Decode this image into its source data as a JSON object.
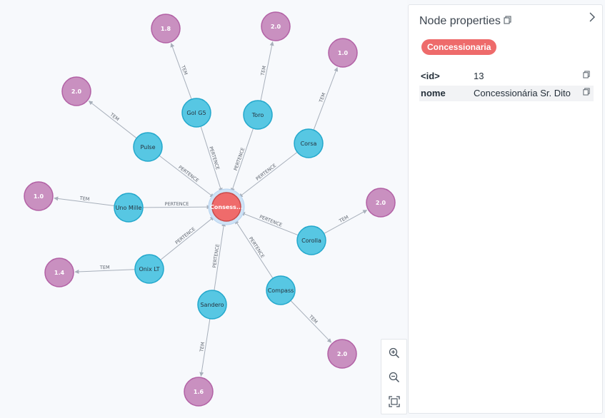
{
  "graph": {
    "center": {
      "id": "center",
      "label": "Consess...",
      "full_name": "Concessionaria",
      "color": "#ef6b6b"
    },
    "cars": [
      {
        "id": "gol",
        "label": "Gol G5",
        "rating": "1.8"
      },
      {
        "id": "toro",
        "label": "Toro",
        "rating": "2.0"
      },
      {
        "id": "corsa",
        "label": "Corsa",
        "rating": "1.0"
      },
      {
        "id": "pulse",
        "label": "Pulse",
        "rating": "2.0"
      },
      {
        "id": "uno",
        "label": "Uno Mille",
        "rating": "1.0"
      },
      {
        "id": "corolla",
        "label": "Corolla",
        "rating": "2.0"
      },
      {
        "id": "onix",
        "label": "Onix LT",
        "rating": "1.4"
      },
      {
        "id": "compass",
        "label": "Compass",
        "rating": "2.0"
      },
      {
        "id": "sandero",
        "label": "Sandero",
        "rating": "1.6"
      }
    ],
    "rel_belongs": "PERTENCE",
    "rel_has": "TEM",
    "colors": {
      "car": "#57c7e3",
      "car_border": "#23a8cc",
      "rating": "#c990c0",
      "rating_border": "#b261a5",
      "center": "#ef6b6b",
      "center_border": "#c94a4a",
      "edge": "#a8b0bb"
    }
  },
  "zoom_controls": {
    "zoom_in": "zoom-in-icon",
    "zoom_out": "zoom-out-icon",
    "fit": "fit-to-screen-icon"
  },
  "panel": {
    "title": "Node properties",
    "label_chip": "Concessionaria",
    "properties": [
      {
        "key": "<id>",
        "value": "13"
      },
      {
        "key": "nome",
        "value": "Concessionária Sr. Dito"
      }
    ]
  }
}
